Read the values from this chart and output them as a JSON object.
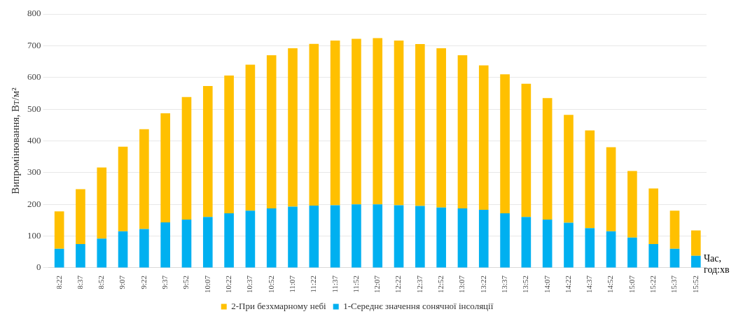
{
  "chart_data": {
    "type": "bar",
    "stacked": true,
    "xlabel": "Час, год:хв",
    "ylabel": "Випромінювання, Вт/м²",
    "categories": [
      "8:22",
      "8:37",
      "8:52",
      "9:07",
      "9:22",
      "9:37",
      "9:52",
      "10:07",
      "10:22",
      "10:37",
      "10:52",
      "11:07",
      "11:22",
      "11:37",
      "11:52",
      "12:07",
      "12:22",
      "12:37",
      "12:52",
      "13:07",
      "13:22",
      "13:37",
      "13:52",
      "14:07",
      "14:22",
      "14:37",
      "14:52",
      "15:07",
      "15:22",
      "15:37",
      "15:52"
    ],
    "series": [
      {
        "name": "1-Середнє значення сонячної інсоляції",
        "color": "#00b0f0",
        "values": [
          60,
          75,
          92,
          115,
          122,
          143,
          152,
          160,
          172,
          180,
          187,
          193,
          196,
          197,
          200,
          200,
          197,
          195,
          190,
          187,
          183,
          172,
          160,
          152,
          142,
          125,
          115,
          95,
          75,
          60,
          38
        ]
      },
      {
        "name": "2-При безхмарному небі",
        "color": "#ffc000",
        "values": [
          118,
          173,
          224,
          267,
          315,
          344,
          386,
          413,
          434,
          460,
          483,
          499,
          510,
          519,
          522,
          524,
          519,
          510,
          502,
          483,
          455,
          438,
          420,
          383,
          340,
          308,
          265,
          210,
          175,
          120,
          80
        ]
      }
    ],
    "ylim": [
      0,
      800
    ],
    "yticks": [
      0,
      100,
      200,
      300,
      400,
      500,
      600,
      700,
      800
    ],
    "grid": "y",
    "legend": "bottom"
  }
}
